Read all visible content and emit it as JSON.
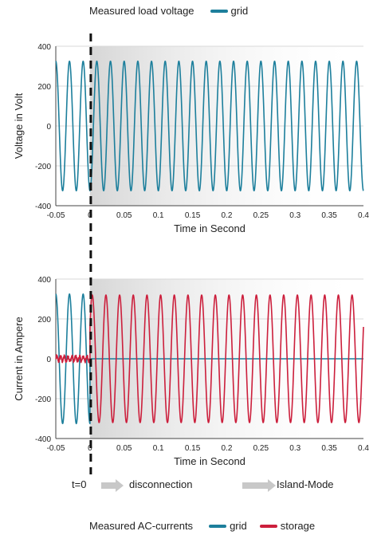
{
  "colors": {
    "grid": "#1d7f9c",
    "storage": "#cc1f3c",
    "shade": "#d6d6d6",
    "axis": "#444444",
    "gridline": "#d9d9d9"
  },
  "legend_top": {
    "title": "Measured load voltage",
    "items": [
      {
        "label": "grid",
        "color": "#1d7f9c"
      }
    ]
  },
  "legend_bottom": {
    "title": "Measured AC-currents",
    "items": [
      {
        "label": "grid",
        "color": "#1d7f9c"
      },
      {
        "label": "storage",
        "color": "#cc1f3c"
      }
    ]
  },
  "phases": {
    "t0": "t=0",
    "disconnection": "disconnection",
    "island": "Island-Mode"
  },
  "chart_data": [
    {
      "type": "line",
      "xlabel": "Time in Second",
      "ylabel": "Voltage in Volt",
      "xlim": [
        -0.05,
        0.4
      ],
      "ylim": [
        -400,
        400
      ],
      "xticks": [
        -0.05,
        0,
        0.05,
        0.1,
        0.15,
        0.2,
        0.25,
        0.3,
        0.35,
        0.4
      ],
      "xtick_labels": [
        "-0.05",
        "0",
        "0.05",
        "0.1",
        "0.15",
        "0.2",
        "0.25",
        "0.3",
        "0.35",
        "0.4"
      ],
      "yticks": [
        -400,
        -200,
        0,
        200,
        400
      ],
      "ytick_labels": [
        "-400",
        "-200",
        "0",
        "200",
        "400"
      ],
      "grid": true,
      "event_x": 0,
      "series": [
        {
          "name": "grid",
          "color": "#1d7f9c",
          "waveform": "sine",
          "amplitude": 325,
          "frequency_hz": 50,
          "phase_deg": -90,
          "x_range": [
            -0.05,
            0.4
          ]
        }
      ]
    },
    {
      "type": "line",
      "xlabel": "Time in Second",
      "ylabel": "Current in Ampere",
      "xlim": [
        -0.05,
        0.4
      ],
      "ylim": [
        -400,
        400
      ],
      "xticks": [
        -0.05,
        0,
        0.05,
        0.1,
        0.15,
        0.2,
        0.25,
        0.3,
        0.35,
        0.4
      ],
      "xtick_labels": [
        "-0.05",
        "0",
        "0.05",
        "0.1",
        "0.15",
        "0.2",
        "0.25",
        "0.3",
        "0.35",
        "0.4"
      ],
      "yticks": [
        -400,
        -200,
        0,
        200,
        400
      ],
      "ytick_labels": [
        "-400",
        "-200",
        "0",
        "200",
        "400"
      ],
      "grid": true,
      "event_x": 0,
      "series": [
        {
          "name": "grid",
          "color": "#1d7f9c",
          "segments": [
            {
              "waveform": "sine",
              "amplitude": 325,
              "frequency_hz": 50,
              "phase_deg": -90,
              "x_range": [
                -0.05,
                0
              ]
            },
            {
              "waveform": "flat",
              "value": 0,
              "x_range": [
                0,
                0.4
              ]
            }
          ]
        },
        {
          "name": "storage",
          "color": "#cc1f3c",
          "segments": [
            {
              "waveform": "noise",
              "value": 0,
              "amplitude": 20,
              "x_range": [
                -0.05,
                0
              ]
            },
            {
              "waveform": "sine",
              "amplitude": 320,
              "frequency_hz": 50,
              "phase_deg": 30,
              "x_range": [
                0,
                0.4
              ]
            }
          ]
        }
      ]
    }
  ]
}
